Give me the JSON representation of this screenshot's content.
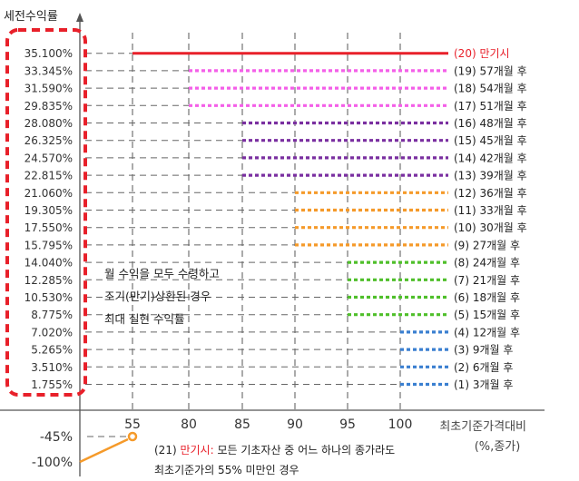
{
  "chart_data": {
    "type": "line",
    "ylabel": "세전수익률",
    "xlabel_line1": "최초기준가격대비",
    "xlabel_line2": "(%,종가)",
    "x_ticks": [
      55,
      80,
      85,
      90,
      95,
      100
    ],
    "x_tick_labels": [
      "55",
      "80",
      "85",
      "90",
      "95",
      "100"
    ],
    "y_ticks": [
      "35.100%",
      "33.345%",
      "31.590%",
      "29.835%",
      "28.080%",
      "26.325%",
      "24.570%",
      "22.815%",
      "21.060%",
      "19.305%",
      "17.550%",
      "15.795%",
      "14.040%",
      "12.285%",
      "10.530%",
      "8.775%",
      "7.020%",
      "5.265%",
      "3.510%",
      "1.755%"
    ],
    "y_ticks_lower": [
      "-45%",
      "-100%"
    ],
    "series": [
      {
        "name": "(20) 만기시",
        "y": 35.1,
        "x_from": 55
      },
      {
        "name": "(19) 57개월 후",
        "y": 33.345,
        "x_from": 80
      },
      {
        "name": "(18) 54개월 후",
        "y": 31.59,
        "x_from": 80
      },
      {
        "name": "(17) 51개월 후",
        "y": 29.835,
        "x_from": 80
      },
      {
        "name": "(16) 48개월 후",
        "y": 28.08,
        "x_from": 85
      },
      {
        "name": "(15) 45개월 후",
        "y": 26.325,
        "x_from": 85
      },
      {
        "name": "(14) 42개월 후",
        "y": 24.57,
        "x_from": 85
      },
      {
        "name": "(13) 39개월 후",
        "y": 22.815,
        "x_from": 85
      },
      {
        "name": "(12) 36개월 후",
        "y": 21.06,
        "x_from": 90
      },
      {
        "name": "(11) 33개월 후",
        "y": 19.305,
        "x_from": 90
      },
      {
        "name": "(10) 30개월 후",
        "y": 17.55,
        "x_from": 90
      },
      {
        "name": "(9) 27개월 후",
        "y": 15.795,
        "x_from": 90
      },
      {
        "name": "(8) 24개월 후",
        "y": 14.04,
        "x_from": 95
      },
      {
        "name": "(7) 21개월 후",
        "y": 12.285,
        "x_from": 95
      },
      {
        "name": "(6) 18개월 후",
        "y": 10.53,
        "x_from": 95
      },
      {
        "name": "(5) 15개월 후",
        "y": 8.775,
        "x_from": 95
      },
      {
        "name": "(4) 12개월 후",
        "y": 7.02,
        "x_from": 100
      },
      {
        "name": "(3) 9개월 후",
        "y": 5.265,
        "x_from": 100
      },
      {
        "name": "(2) 6개월 후",
        "y": 3.51,
        "x_from": 100
      },
      {
        "name": "(1) 3개월 후",
        "y": 1.755,
        "x_from": 100
      }
    ],
    "loss_line": [
      {
        "x": 0,
        "y": -100
      },
      {
        "x": 55,
        "y": -45
      }
    ],
    "annotation": [
      "월 수익을 모두 수령하고",
      "조기(만기)상환된 경우",
      "최대 실현 수익률"
    ],
    "note_prefix": "(21) ",
    "note_highlight": "만기시:",
    "note_rest": " 모든 기초자산 중 어느 하나의 종가라도",
    "note_line2": "최초기준가의 55% 미만인 경우"
  },
  "colors": {
    "maturity": "#e8202a",
    "pink": "#f45fe8",
    "purple": "#7a2fa0",
    "orange": "#f59a2a",
    "green": "#4fbf2a",
    "blue": "#3a7fd0",
    "loss": "#f59a2a",
    "guide": "#666666",
    "axis": "#555555",
    "highlight_box": "#e8202a",
    "text": "#333333"
  }
}
